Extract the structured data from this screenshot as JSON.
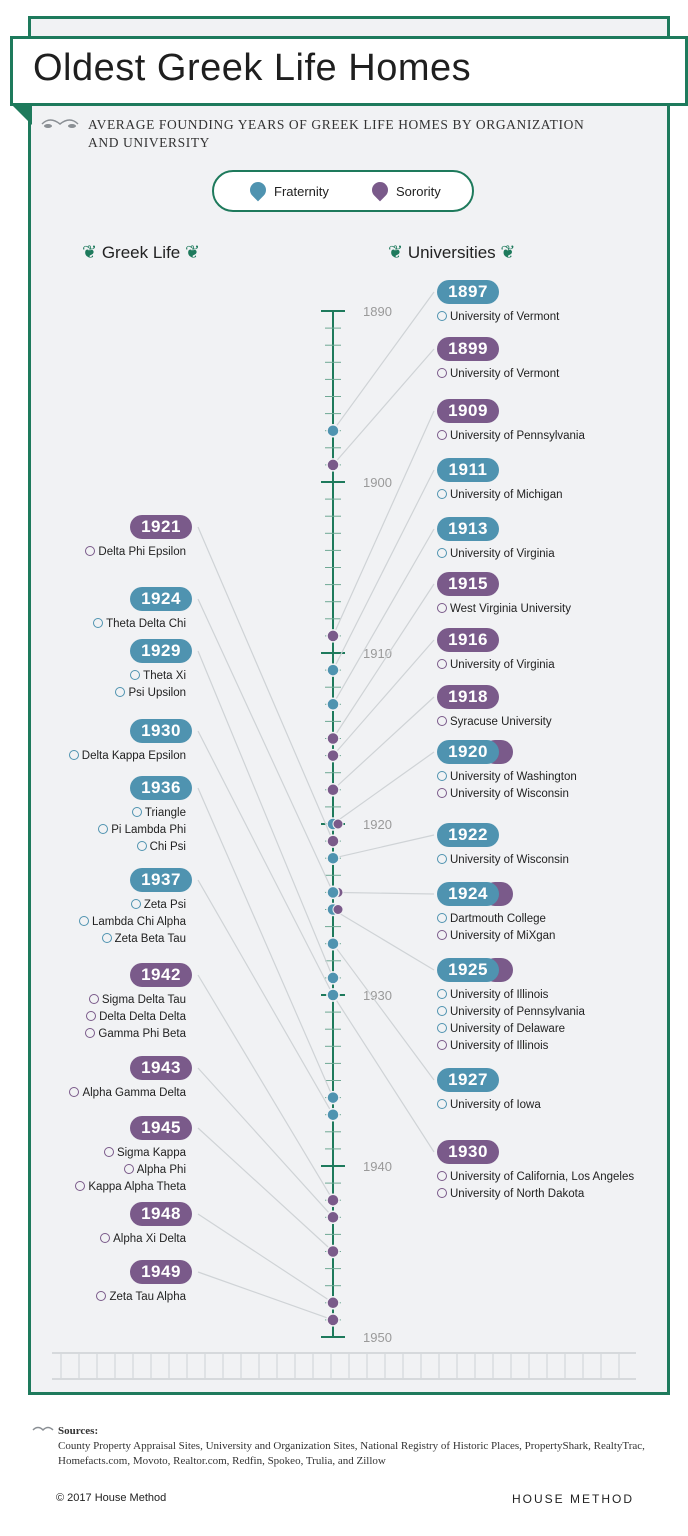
{
  "title": "Oldest Greek Life Homes",
  "subtitle": "Average founding years of Greek life homes by organization and university",
  "legend": {
    "fraternity": "Fraternity",
    "sorority": "Sorority"
  },
  "headers": {
    "left": "Greek Life",
    "right": "Universities"
  },
  "colors": {
    "fraternity": "#4f93b0",
    "sorority": "#7a5a8a",
    "accent": "#1e7a5c"
  },
  "axis_labels": [
    "1890",
    "1900",
    "1910",
    "1920",
    "1930",
    "1940",
    "1950"
  ],
  "sources_title": "Sources:",
  "sources_text": "County Property Appraisal Sites, University and Organization Sites, National Registry of Historic Places, PropertyShark, RealtyTrac, Homefacts.com, Movoto, Realtor.com, Redfin, Spokeo, Trulia, and Zillow",
  "copyright": "© 2017 House Method",
  "brand": "HOUSE METHOD",
  "chart_data": {
    "type": "timeline",
    "ylim": [
      1890,
      1950
    ],
    "greek_life": [
      {
        "year": "1921",
        "type": "sorority",
        "items": [
          {
            "name": "Delta Phi Epsilon",
            "type": "sorority"
          }
        ]
      },
      {
        "year": "1924",
        "type": "fraternity",
        "items": [
          {
            "name": "Theta Delta Chi",
            "type": "fraternity"
          }
        ]
      },
      {
        "year": "1929",
        "type": "fraternity",
        "items": [
          {
            "name": "Theta Xi",
            "type": "fraternity"
          },
          {
            "name": "Psi Upsilon",
            "type": "fraternity"
          }
        ]
      },
      {
        "year": "1930",
        "type": "fraternity",
        "items": [
          {
            "name": "Delta Kappa Epsilon",
            "type": "fraternity"
          }
        ]
      },
      {
        "year": "1936",
        "type": "fraternity",
        "items": [
          {
            "name": "Triangle",
            "type": "fraternity"
          },
          {
            "name": "Pi Lambda Phi",
            "type": "fraternity"
          },
          {
            "name": "Chi Psi",
            "type": "fraternity"
          }
        ]
      },
      {
        "year": "1937",
        "type": "fraternity",
        "items": [
          {
            "name": "Zeta Psi",
            "type": "fraternity"
          },
          {
            "name": "Lambda Chi Alpha",
            "type": "fraternity"
          },
          {
            "name": "Zeta Beta Tau",
            "type": "fraternity"
          }
        ]
      },
      {
        "year": "1942",
        "type": "sorority",
        "items": [
          {
            "name": "Sigma Delta Tau",
            "type": "sorority"
          },
          {
            "name": "Delta Delta Delta",
            "type": "sorority"
          },
          {
            "name": "Gamma Phi Beta",
            "type": "sorority"
          }
        ]
      },
      {
        "year": "1943",
        "type": "sorority",
        "items": [
          {
            "name": "Alpha Gamma Delta",
            "type": "sorority"
          }
        ]
      },
      {
        "year": "1945",
        "type": "sorority",
        "items": [
          {
            "name": "Sigma Kappa",
            "type": "sorority"
          },
          {
            "name": "Alpha Phi",
            "type": "sorority"
          },
          {
            "name": "Kappa Alpha Theta",
            "type": "sorority"
          }
        ]
      },
      {
        "year": "1948",
        "type": "sorority",
        "items": [
          {
            "name": "Alpha Xi Delta",
            "type": "sorority"
          }
        ]
      },
      {
        "year": "1949",
        "type": "sorority",
        "items": [
          {
            "name": "Zeta Tau Alpha",
            "type": "sorority"
          }
        ]
      }
    ],
    "universities": [
      {
        "year": "1897",
        "type": "fraternity",
        "items": [
          {
            "name": "University of Vermont",
            "type": "fraternity"
          }
        ]
      },
      {
        "year": "1899",
        "type": "sorority",
        "items": [
          {
            "name": "University of Vermont",
            "type": "sorority"
          }
        ]
      },
      {
        "year": "1909",
        "type": "sorority",
        "items": [
          {
            "name": "University of Pennsylvania",
            "type": "sorority"
          }
        ]
      },
      {
        "year": "1911",
        "type": "fraternity",
        "items": [
          {
            "name": "University of Michigan",
            "type": "fraternity"
          }
        ]
      },
      {
        "year": "1913",
        "type": "fraternity",
        "items": [
          {
            "name": "University of Virginia",
            "type": "fraternity"
          }
        ]
      },
      {
        "year": "1915",
        "type": "sorority",
        "items": [
          {
            "name": "West Virginia University",
            "type": "sorority"
          }
        ]
      },
      {
        "year": "1916",
        "type": "sorority",
        "items": [
          {
            "name": "University of Virginia",
            "type": "sorority"
          }
        ]
      },
      {
        "year": "1918",
        "type": "sorority",
        "items": [
          {
            "name": "Syracuse University",
            "type": "sorority"
          }
        ]
      },
      {
        "year": "1920",
        "type": "both",
        "items": [
          {
            "name": "University of Washington",
            "type": "fraternity"
          },
          {
            "name": "University of Wisconsin",
            "type": "sorority"
          }
        ]
      },
      {
        "year": "1922",
        "type": "fraternity",
        "items": [
          {
            "name": "University of Wisconsin",
            "type": "fraternity"
          }
        ]
      },
      {
        "year": "1924",
        "type": "both",
        "items": [
          {
            "name": "Dartmouth College",
            "type": "fraternity"
          },
          {
            "name": "University of MiXgan",
            "type": "sorority"
          }
        ]
      },
      {
        "year": "1925",
        "type": "both",
        "items": [
          {
            "name": "University of Illinois",
            "type": "fraternity"
          },
          {
            "name": "University of Pennsylvania",
            "type": "fraternity"
          },
          {
            "name": "University of Delaware",
            "type": "fraternity"
          },
          {
            "name": "University of Illinois",
            "type": "sorority"
          }
        ]
      },
      {
        "year": "1927",
        "type": "fraternity",
        "items": [
          {
            "name": "University of Iowa",
            "type": "fraternity"
          }
        ]
      },
      {
        "year": "1930",
        "type": "sorority",
        "items": [
          {
            "name": "University of California, Los Angeles",
            "type": "sorority"
          },
          {
            "name": "University of North Dakota",
            "type": "sorority"
          }
        ]
      }
    ]
  }
}
